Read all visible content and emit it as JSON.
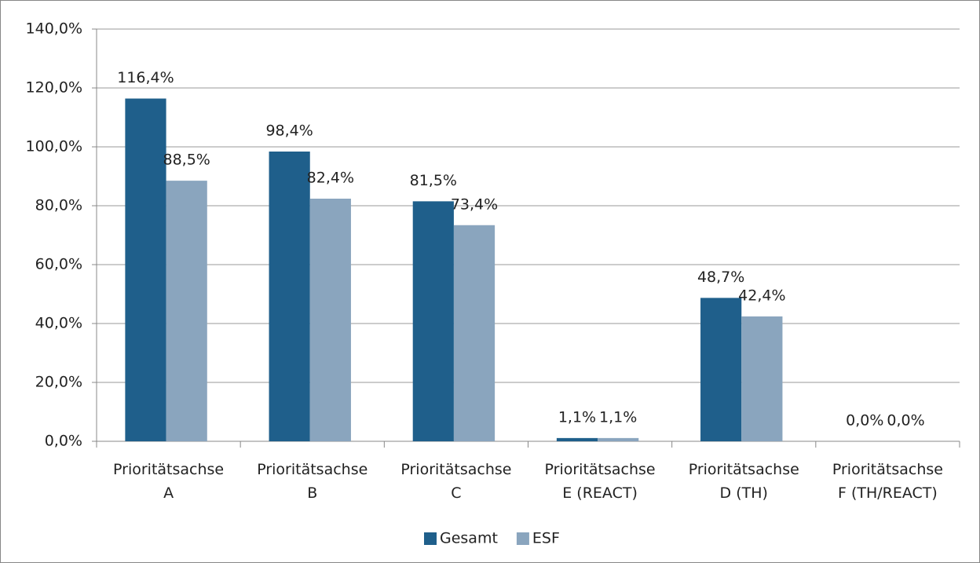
{
  "chart_data": {
    "type": "bar",
    "categories": [
      "Prioritätsachse A",
      "Prioritätsachse B",
      "Prioritätsachse C",
      "Prioritätsachse E (REACT)",
      "Prioritätsachse D (TH)",
      "Prioritätsachse F (TH/REACT)"
    ],
    "series": [
      {
        "name": "Gesamt",
        "color": "#1f5f8b",
        "values": [
          116.4,
          98.4,
          81.5,
          1.1,
          48.7,
          0
        ],
        "value_labels": [
          "116,4%",
          "98,4%",
          "81,5%",
          "1,1%",
          "48,7%",
          "0,0%"
        ]
      },
      {
        "name": "ESF",
        "color": "#8aa5be",
        "values": [
          88.5,
          82.4,
          73.4,
          1.1,
          42.4,
          0
        ],
        "value_labels": [
          "88,5%",
          "82,4%",
          "73,4%",
          "1,1%",
          "42,4%",
          "0,0%"
        ]
      }
    ],
    "ylim": [
      0,
      140
    ],
    "yticks": [
      {
        "value": 0,
        "label": "0,0%"
      },
      {
        "value": 20,
        "label": "20,0%"
      },
      {
        "value": 40,
        "label": "40,0%"
      },
      {
        "value": 60,
        "label": "60,0%"
      },
      {
        "value": 80,
        "label": "80,0%"
      },
      {
        "value": 100,
        "label": "100,0%"
      },
      {
        "value": 120,
        "label": "120,0%"
      },
      {
        "value": 140,
        "label": "140,0%"
      }
    ],
    "grid": true,
    "legend": "bottom"
  }
}
